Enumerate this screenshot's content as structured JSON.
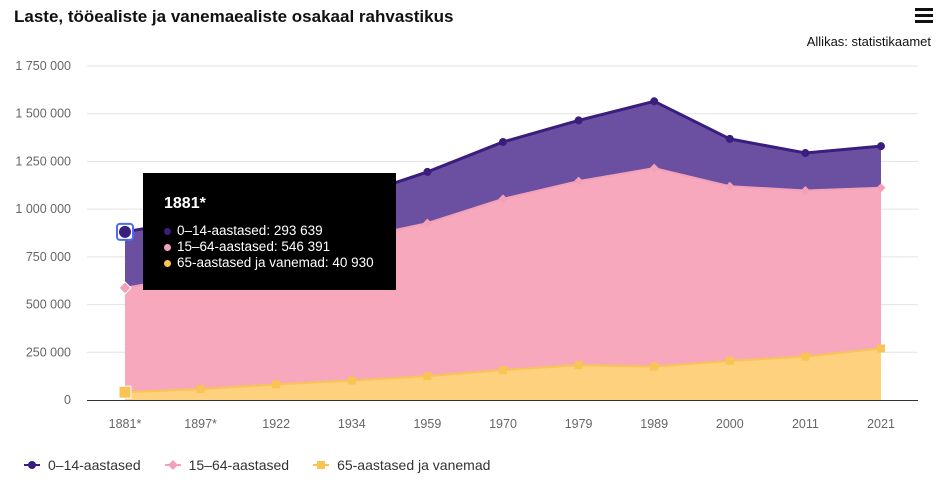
{
  "header": {
    "title": "Laste, tööealiste ja vanemaealiste osakaal rahvastikus",
    "source": "Allikas: statistikaamet",
    "menu_icon": "hamburger-menu-icon"
  },
  "chart_data": {
    "type": "area",
    "stacked": true,
    "categories": [
      "1881*",
      "1897*",
      "1922",
      "1934",
      "1959",
      "1970",
      "1979",
      "1989",
      "2000",
      "2011",
      "2021"
    ],
    "ylim": [
      0,
      1750000
    ],
    "yticks": [
      0,
      250000,
      500000,
      750000,
      1000000,
      1250000,
      1500000,
      1750000
    ],
    "ytick_labels": [
      "0",
      "250 000",
      "500 000",
      "750 000",
      "1 000 000",
      "1 250 000",
      "1 500 000",
      "1 750 000"
    ],
    "grid": true,
    "legend_position": "bottom-left",
    "series": [
      {
        "name": "65-aastased ja vanemad",
        "color": "#f9c453",
        "fill": "#fdd17e",
        "marker": "square",
        "values": [
          40930,
          57000,
          82000,
          102000,
          125000,
          157000,
          183000,
          175000,
          205000,
          228000,
          270000
        ]
      },
      {
        "name": "15–64-aastased",
        "color": "#f3a1b8",
        "fill": "#f7a8bd",
        "marker": "diamond",
        "values": [
          546391,
          600000,
          700000,
          740000,
          802000,
          897000,
          964000,
          1040000,
          915000,
          870000,
          842000
        ]
      },
      {
        "name": "0–14-aastased",
        "color": "#3a1e7e",
        "fill": "#6b4fa1",
        "marker": "circle",
        "values": [
          293639,
          290000,
          244000,
          220000,
          268000,
          298000,
          318000,
          350000,
          248000,
          196000,
          218000
        ]
      }
    ]
  },
  "legend": {
    "items": [
      {
        "label": "0–14-aastased",
        "color": "#3a1e7e"
      },
      {
        "label": "15–64-aastased",
        "color": "#f3a1b8"
      },
      {
        "label": "65-aastased ja vanemad",
        "color": "#f9c453"
      }
    ]
  },
  "tooltip": {
    "title": "1881*",
    "rows": [
      {
        "text": "0–14-aastased: 293 639",
        "color": "#3a1e7e"
      },
      {
        "text": "15–64-aastased: 546 391",
        "color": "#f3a1b8"
      },
      {
        "text": "65-aastased ja vanemad: 40 930",
        "color": "#f9c453"
      }
    ]
  }
}
